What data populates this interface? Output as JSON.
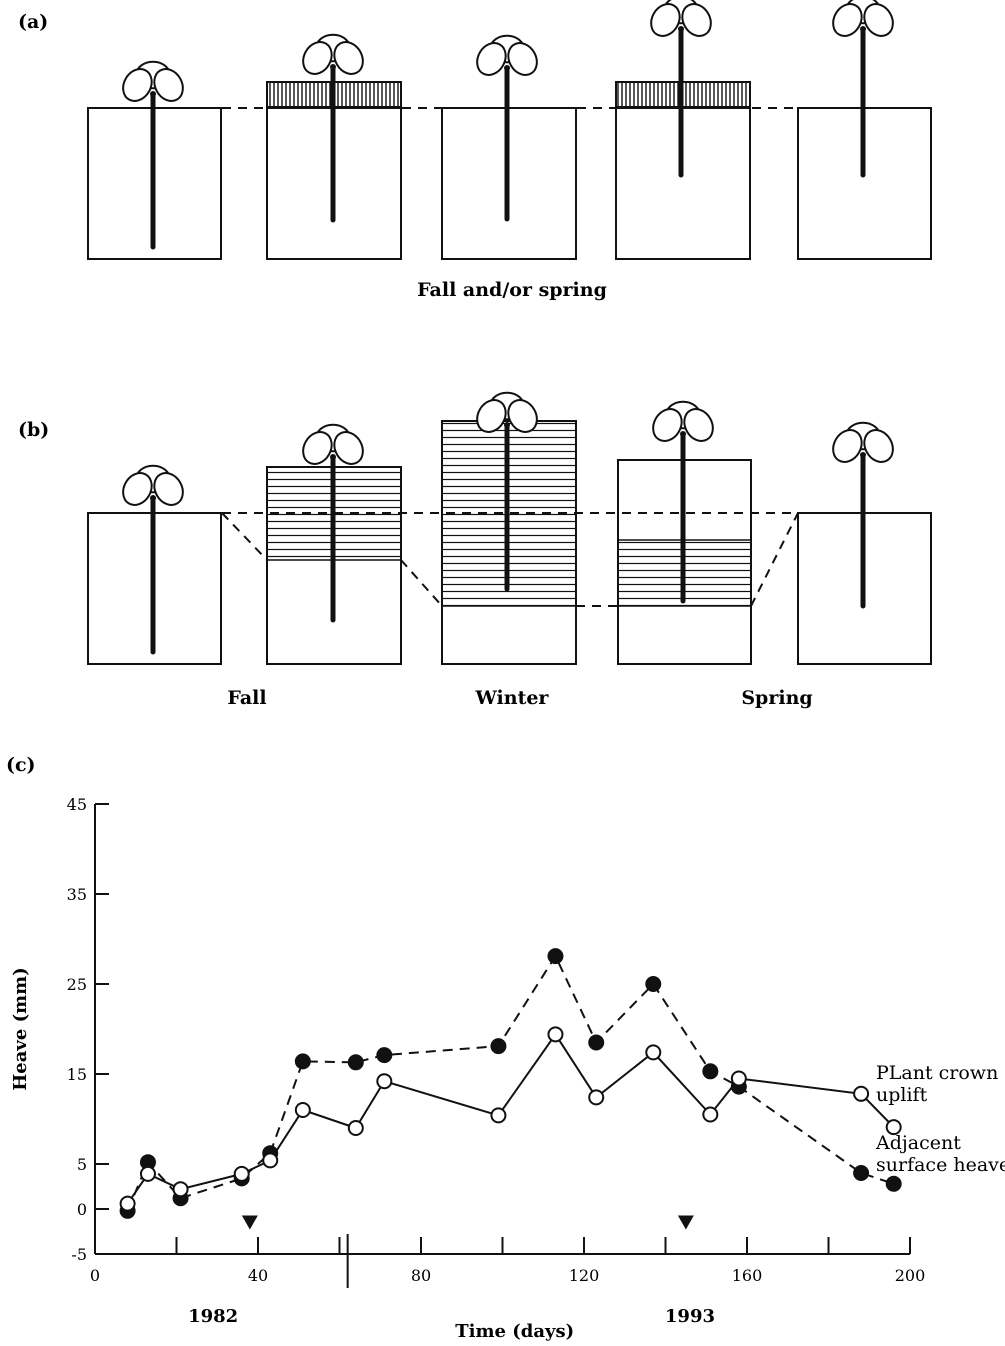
{
  "panels": {
    "a": {
      "label": "(a)",
      "caption": "Fall and/or spring"
    },
    "b": {
      "label": "(b)",
      "captions": [
        "Fall",
        "Winter",
        "Spring"
      ]
    },
    "c": {
      "label": "(c)"
    }
  },
  "chart_data": {
    "type": "line",
    "title": "",
    "xlabel": "Time (days)",
    "ylabel": "Heave (mm)",
    "xlim": [
      0,
      200
    ],
    "ylim": [
      -5,
      45
    ],
    "xticks": [
      0,
      40,
      80,
      120,
      160,
      200
    ],
    "yticks": [
      -5,
      0,
      5,
      15,
      25,
      35,
      45
    ],
    "year_labels": [
      "1982",
      "1993"
    ],
    "markers_x": [
      38,
      145
    ],
    "series": [
      {
        "name": "Adjacent surface heave",
        "legend_lines": [
          "Adjacent",
          "surface heave"
        ],
        "style": "dashed",
        "marker": "filled-circle",
        "x": [
          8,
          13,
          21,
          36,
          43,
          51,
          64,
          71,
          99,
          113,
          123,
          137,
          151,
          158,
          188,
          196
        ],
        "y": [
          -0.2,
          5.2,
          1.2,
          3.4,
          6.2,
          16.4,
          16.3,
          17.1,
          18.1,
          28.1,
          18.5,
          25.0,
          15.3,
          13.6,
          4.0,
          2.8
        ]
      },
      {
        "name": "PLant crown uplift",
        "legend_lines": [
          "PLant crown",
          "uplift"
        ],
        "style": "solid",
        "marker": "open-circle",
        "x": [
          8,
          13,
          21,
          36,
          43,
          51,
          64,
          71,
          99,
          113,
          123,
          137,
          151,
          158,
          188,
          196
        ],
        "y": [
          0.6,
          3.9,
          2.2,
          3.9,
          5.4,
          11.0,
          9.0,
          14.2,
          10.4,
          19.4,
          12.4,
          17.4,
          10.5,
          14.5,
          12.8,
          9.1
        ]
      }
    ]
  }
}
